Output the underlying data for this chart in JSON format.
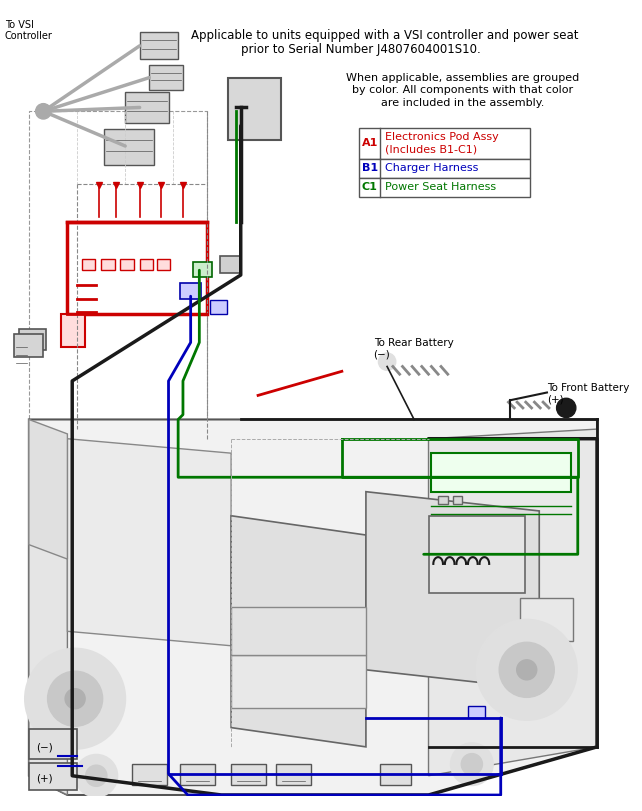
{
  "fig_width": 6.42,
  "fig_height": 8.11,
  "dpi": 100,
  "bg_color": "#ffffff",
  "title_text1": "Applicable to units equipped with a VSI controller and power seat",
  "title_text2": "prior to Serial Number J4807604001S10.",
  "legend_header_lines": [
    "When applicable, assemblies are grouped",
    "by color. All components with that color",
    "are included in the assembly."
  ],
  "legend_items": [
    {
      "id": "A1",
      "desc1": "Electronics Pod Assy",
      "desc2": "(Includes B1-C1)",
      "color": "#cc0000"
    },
    {
      "id": "B1",
      "desc1": "Charger Harness",
      "desc2": "",
      "color": "#0000bb"
    },
    {
      "id": "C1",
      "desc1": "Power Seat Harness",
      "desc2": "",
      "color": "#007700"
    }
  ],
  "annotation_vsi": "To VSI\nController",
  "annotation_rear": "To Rear Battery\n(−)",
  "annotation_front": "To Front Battery\n(+)",
  "colors": {
    "black": "#1a1a1a",
    "blue": "#0000bb",
    "green": "#007700",
    "red": "#cc0000",
    "lgray": "#aaaaaa",
    "mgray": "#888888",
    "dgray": "#555555",
    "body_fill": "#f0f0f0",
    "body_edge": "#666666"
  }
}
